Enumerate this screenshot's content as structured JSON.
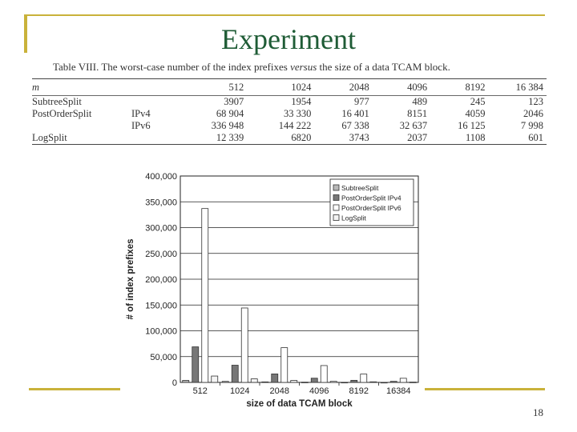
{
  "slide": {
    "title": "Experiment",
    "page_number": "18"
  },
  "table": {
    "caption_prefix": "Table VIII. The worst-case number of the index prefixes ",
    "caption_em": "versus",
    "caption_suffix": " the size of a data TCAM block.",
    "header_label": "m",
    "header_values": [
      "512",
      "1024",
      "2048",
      "4096",
      "8192",
      "16 384"
    ],
    "rows": [
      {
        "name": "SubtreeSplit",
        "sub": "",
        "values": [
          "3907",
          "1954",
          "977",
          "489",
          "245",
          "123"
        ]
      },
      {
        "name": "PostOrderSplit",
        "sub": "IPv4",
        "values": [
          "68 904",
          "33 330",
          "16 401",
          "8151",
          "4059",
          "2046"
        ]
      },
      {
        "name": "",
        "sub": "IPv6",
        "values": [
          "336 948",
          "144 222",
          "67 338",
          "32 637",
          "16 125",
          "7 998"
        ]
      },
      {
        "name": "LogSplit",
        "sub": "",
        "values": [
          "12 339",
          "6820",
          "3743",
          "2037",
          "1108",
          "601"
        ]
      }
    ]
  },
  "chart_data": {
    "type": "bar",
    "title": "",
    "xlabel": "size of data TCAM block",
    "ylabel": "# of index prefixes",
    "ylim": [
      0,
      400000
    ],
    "yticks": [
      0,
      50000,
      100000,
      150000,
      200000,
      250000,
      300000,
      350000,
      400000
    ],
    "ytick_labels": [
      "0",
      "50,000",
      "100,000",
      "150,000",
      "200,000",
      "250,000",
      "300,000",
      "350,000",
      "400,000"
    ],
    "categories": [
      "512",
      "1024",
      "2048",
      "4096",
      "8192",
      "16384"
    ],
    "grid": true,
    "legend_position": "top-right",
    "series": [
      {
        "name": "SubtreeSplit",
        "color": "#b8b8b8",
        "values": [
          3907,
          1954,
          977,
          489,
          245,
          123
        ]
      },
      {
        "name": "PostOrderSplit IPv4",
        "color": "#777777",
        "values": [
          68904,
          33330,
          16401,
          8151,
          4059,
          2046
        ]
      },
      {
        "name": "PostOrderSplit IPv6",
        "color": "#ffffff",
        "values": [
          336948,
          144222,
          67338,
          32637,
          16125,
          7998
        ]
      },
      {
        "name": "LogSplit",
        "color": "#f4f4f4",
        "values": [
          12339,
          6820,
          3743,
          2037,
          1108,
          601
        ]
      }
    ]
  }
}
